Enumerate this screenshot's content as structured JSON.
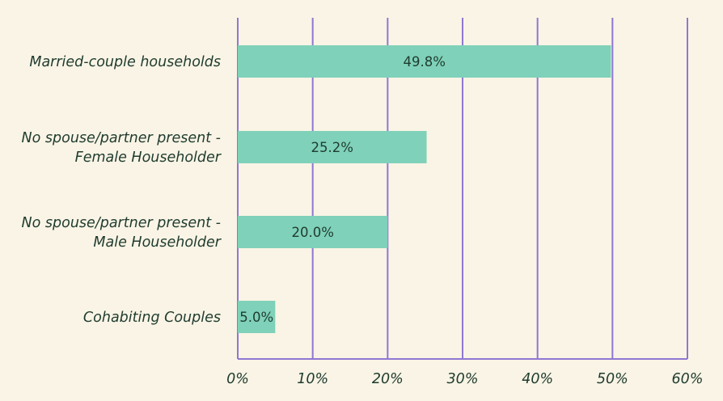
{
  "chart_data": {
    "type": "bar",
    "orientation": "horizontal",
    "categories": [
      [
        "Married-couple households"
      ],
      [
        "No spouse/partner present -",
        "Female Householder"
      ],
      [
        "No spouse/partner present -",
        "Male Householder"
      ],
      [
        "Cohabiting Couples"
      ]
    ],
    "values": [
      49.8,
      25.2,
      20.0,
      5.0
    ],
    "data_labels": [
      "49.8%",
      "25.2%",
      "20.0%",
      "5.0%"
    ],
    "xlim": [
      0,
      60
    ],
    "xticks": [
      0,
      10,
      20,
      30,
      40,
      50,
      60
    ],
    "xtick_labels": [
      "0%",
      "10%",
      "20%",
      "30%",
      "40%",
      "50%",
      "60%"
    ],
    "grid": "vertical",
    "legend": "none",
    "title": "",
    "xlabel": "",
    "ylabel": "",
    "colors": {
      "bar": "#7fd1b9",
      "grid": "#8f77d4",
      "text": "#1f3b2f",
      "background": "#f9f4e5"
    }
  }
}
